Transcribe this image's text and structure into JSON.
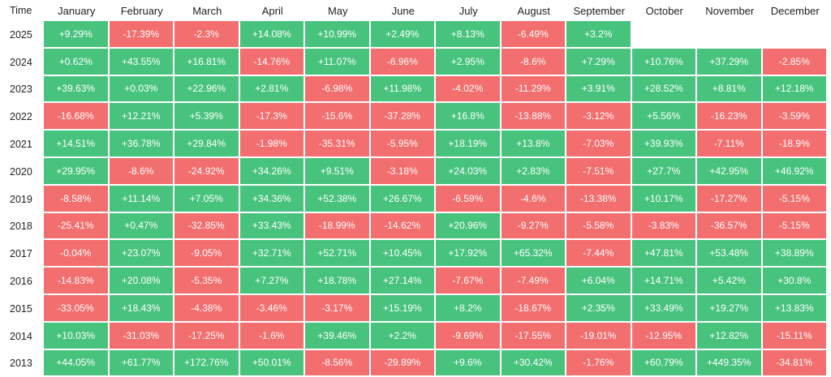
{
  "chart_data": {
    "type": "table",
    "title": "",
    "corner_label": "Time",
    "months": [
      "January",
      "February",
      "March",
      "April",
      "May",
      "June",
      "July",
      "August",
      "September",
      "October",
      "November",
      "December"
    ],
    "colors": {
      "positive": "#48c37e",
      "negative": "#f36e6e"
    },
    "rows": [
      {
        "year": "2025",
        "values": [
          "+9.29%",
          "-17.39%",
          "-2.3%",
          "+14.08%",
          "+10.99%",
          "+2.49%",
          "+8.13%",
          "-6.49%",
          "+3.2%",
          "",
          "",
          ""
        ]
      },
      {
        "year": "2024",
        "values": [
          "+0.62%",
          "+43.55%",
          "+16.81%",
          "-14.76%",
          "+11.07%",
          "-6.96%",
          "+2.95%",
          "-8.6%",
          "+7.29%",
          "+10.76%",
          "+37.29%",
          "-2.85%"
        ]
      },
      {
        "year": "2023",
        "values": [
          "+39.63%",
          "+0.03%",
          "+22.96%",
          "+2.81%",
          "-6.98%",
          "+11.98%",
          "-4.02%",
          "-11.29%",
          "+3.91%",
          "+28.52%",
          "+8.81%",
          "+12.18%"
        ]
      },
      {
        "year": "2022",
        "values": [
          "-16.68%",
          "+12.21%",
          "+5.39%",
          "-17.3%",
          "-15.6%",
          "-37.28%",
          "+16.8%",
          "-13.88%",
          "-3.12%",
          "+5.56%",
          "-16.23%",
          "-3.59%"
        ]
      },
      {
        "year": "2021",
        "values": [
          "+14.51%",
          "+36.78%",
          "+29.84%",
          "-1.98%",
          "-35.31%",
          "-5.95%",
          "+18.19%",
          "+13.8%",
          "-7.03%",
          "+39.93%",
          "-7.11%",
          "-18.9%"
        ]
      },
      {
        "year": "2020",
        "values": [
          "+29.95%",
          "-8.6%",
          "-24.92%",
          "+34.26%",
          "+9.51%",
          "-3.18%",
          "+24.03%",
          "+2.83%",
          "-7.51%",
          "+27.7%",
          "+42.95%",
          "+46.92%"
        ]
      },
      {
        "year": "2019",
        "values": [
          "-8.58%",
          "+11.14%",
          "+7.05%",
          "+34.36%",
          "+52.38%",
          "+26.67%",
          "-6.59%",
          "-4.6%",
          "-13.38%",
          "+10.17%",
          "-17.27%",
          "-5.15%"
        ]
      },
      {
        "year": "2018",
        "values": [
          "-25.41%",
          "+0.47%",
          "-32.85%",
          "+33.43%",
          "-18.99%",
          "-14.62%",
          "+20.96%",
          "-9.27%",
          "-5.58%",
          "-3.83%",
          "-36.57%",
          "-5.15%"
        ]
      },
      {
        "year": "2017",
        "values": [
          "-0.04%",
          "+23.07%",
          "-9.05%",
          "+32.71%",
          "+52.71%",
          "+10.45%",
          "+17.92%",
          "+65.32%",
          "-7.44%",
          "+47.81%",
          "+53.48%",
          "+38.89%"
        ]
      },
      {
        "year": "2016",
        "values": [
          "-14.83%",
          "+20.08%",
          "-5.35%",
          "+7.27%",
          "+18.78%",
          "+27.14%",
          "-7.67%",
          "-7.49%",
          "+6.04%",
          "+14.71%",
          "+5.42%",
          "+30.8%"
        ]
      },
      {
        "year": "2015",
        "values": [
          "-33.05%",
          "+18.43%",
          "-4.38%",
          "-3.46%",
          "-3.17%",
          "+15.19%",
          "+8.2%",
          "-18.67%",
          "+2.35%",
          "+33.49%",
          "+19.27%",
          "+13.83%"
        ]
      },
      {
        "year": "2014",
        "values": [
          "+10.03%",
          "-31.03%",
          "-17.25%",
          "-1.6%",
          "+39.46%",
          "+2.2%",
          "-9.69%",
          "-17.55%",
          "-19.01%",
          "-12.95%",
          "+12.82%",
          "-15.11%"
        ]
      },
      {
        "year": "2013",
        "values": [
          "+44.05%",
          "+61.77%",
          "+172.76%",
          "+50.01%",
          "-8.56%",
          "-29.89%",
          "+9.6%",
          "+30.42%",
          "-1.76%",
          "+60.79%",
          "+449.35%",
          "-34.81%"
        ]
      }
    ]
  }
}
